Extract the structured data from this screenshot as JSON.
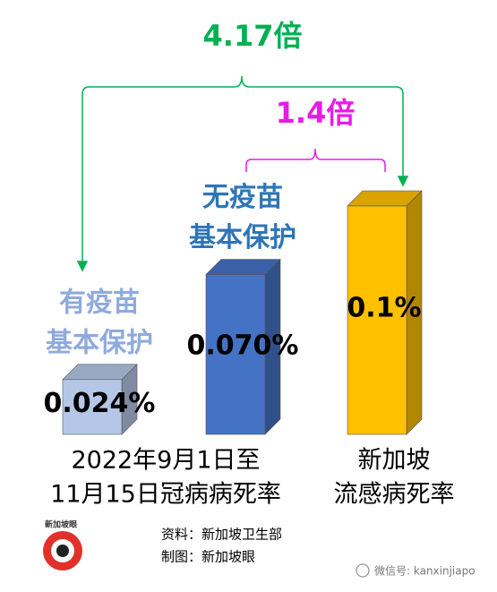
{
  "chart_data": {
    "type": "bar",
    "categories": [
      [
        "有疫苗",
        "基本保护"
      ],
      [
        "无疫苗",
        "基本保护"
      ],
      null
    ],
    "category_colors": [
      "#8faadc",
      "#2e75b6",
      null
    ],
    "values": [
      0.024,
      0.07,
      0.1
    ],
    "value_labels": [
      "0.024%",
      "0.070%",
      "0.1%"
    ],
    "colors": [
      "#b4c7e7",
      "#4472c4",
      "#ffc000"
    ],
    "annotations": [
      {
        "text": "4.17倍",
        "color": "#00b050"
      },
      {
        "text": "1.4倍",
        "color": "#e81ae8"
      }
    ],
    "groups": [
      [
        "2022年9月1日至",
        "11月15日冠病病死率"
      ],
      [
        "新加坡",
        "流感病死率"
      ]
    ]
  },
  "source": [
    "资料：新加坡卫生部",
    "制图：新加坡眼"
  ],
  "logo": "新加坡眼",
  "watermark": "微信号: kanxinjiapo"
}
